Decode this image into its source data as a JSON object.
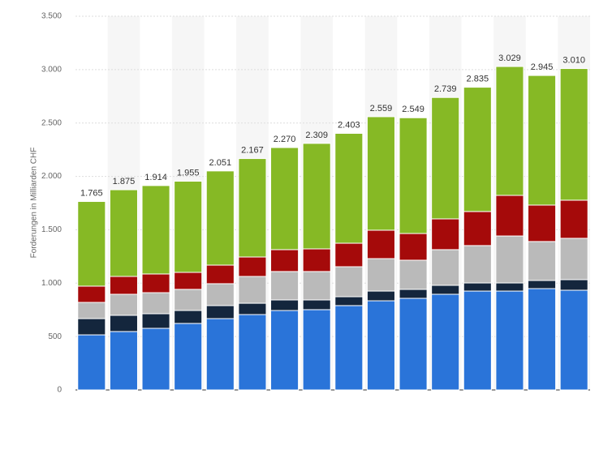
{
  "chart_data": {
    "type": "stacked_bar",
    "y_label": "Forderungen in Milliarden CHF",
    "categories": [
      null,
      null,
      null,
      null,
      null,
      null,
      null,
      null,
      null,
      null,
      null,
      null,
      null,
      null,
      null,
      null
    ],
    "series": [
      {
        "color": "#2a74d9",
        "values": [
          516,
          547,
          577,
          623,
          668,
          706,
          744,
          752,
          790,
          835,
          858,
          896,
          926,
          926,
          949,
          934
        ]
      },
      {
        "color": "#14263d",
        "values": [
          152,
          152,
          137,
          121,
          122,
          106,
          99,
          91,
          83,
          91,
          84,
          84,
          76,
          76,
          76,
          99
        ]
      },
      {
        "color": "#bababa",
        "values": [
          152,
          197,
          197,
          198,
          205,
          251,
          266,
          266,
          281,
          304,
          273,
          334,
          350,
          440,
          365,
          387
        ]
      },
      {
        "color": "#a50a0a",
        "values": [
          152,
          167,
          175,
          159,
          174,
          182,
          205,
          212,
          220,
          266,
          250,
          288,
          319,
          380,
          341,
          357
        ]
      },
      {
        "color": "#86b925",
        "values": [
          793,
          812,
          828,
          854,
          882,
          922,
          956,
          988,
          1029,
          1063,
          1084,
          1137,
          1164,
          1207,
          1214,
          1233
        ]
      }
    ],
    "totals": {
      "values": [
        1765,
        1875,
        1914,
        1955,
        2051,
        2167,
        2270,
        2309,
        2403,
        2559,
        2549,
        2739,
        2835,
        3029,
        2945,
        3010
      ],
      "value_labels": [
        "1.765",
        "1.875",
        "1.914",
        "1.955",
        "2.051",
        "2.167",
        "2.270",
        "2.309",
        "2.403",
        "2.559",
        "2.549",
        "2.739",
        "2.835",
        "3.029",
        "2.945",
        "3.010"
      ]
    },
    "ylim": [
      0,
      3500
    ],
    "yticks": [
      0,
      500,
      {
        "value": 1000,
        "label": "1.000"
      },
      {
        "value": 1500,
        "label": "1.500"
      },
      {
        "value": 2000,
        "label": "2.000"
      },
      {
        "value": 2500,
        "label": "2.500"
      },
      {
        "value": 3000,
        "label": "3.000"
      },
      {
        "value": 3500,
        "label": "3.500"
      }
    ],
    "grid": true
  }
}
